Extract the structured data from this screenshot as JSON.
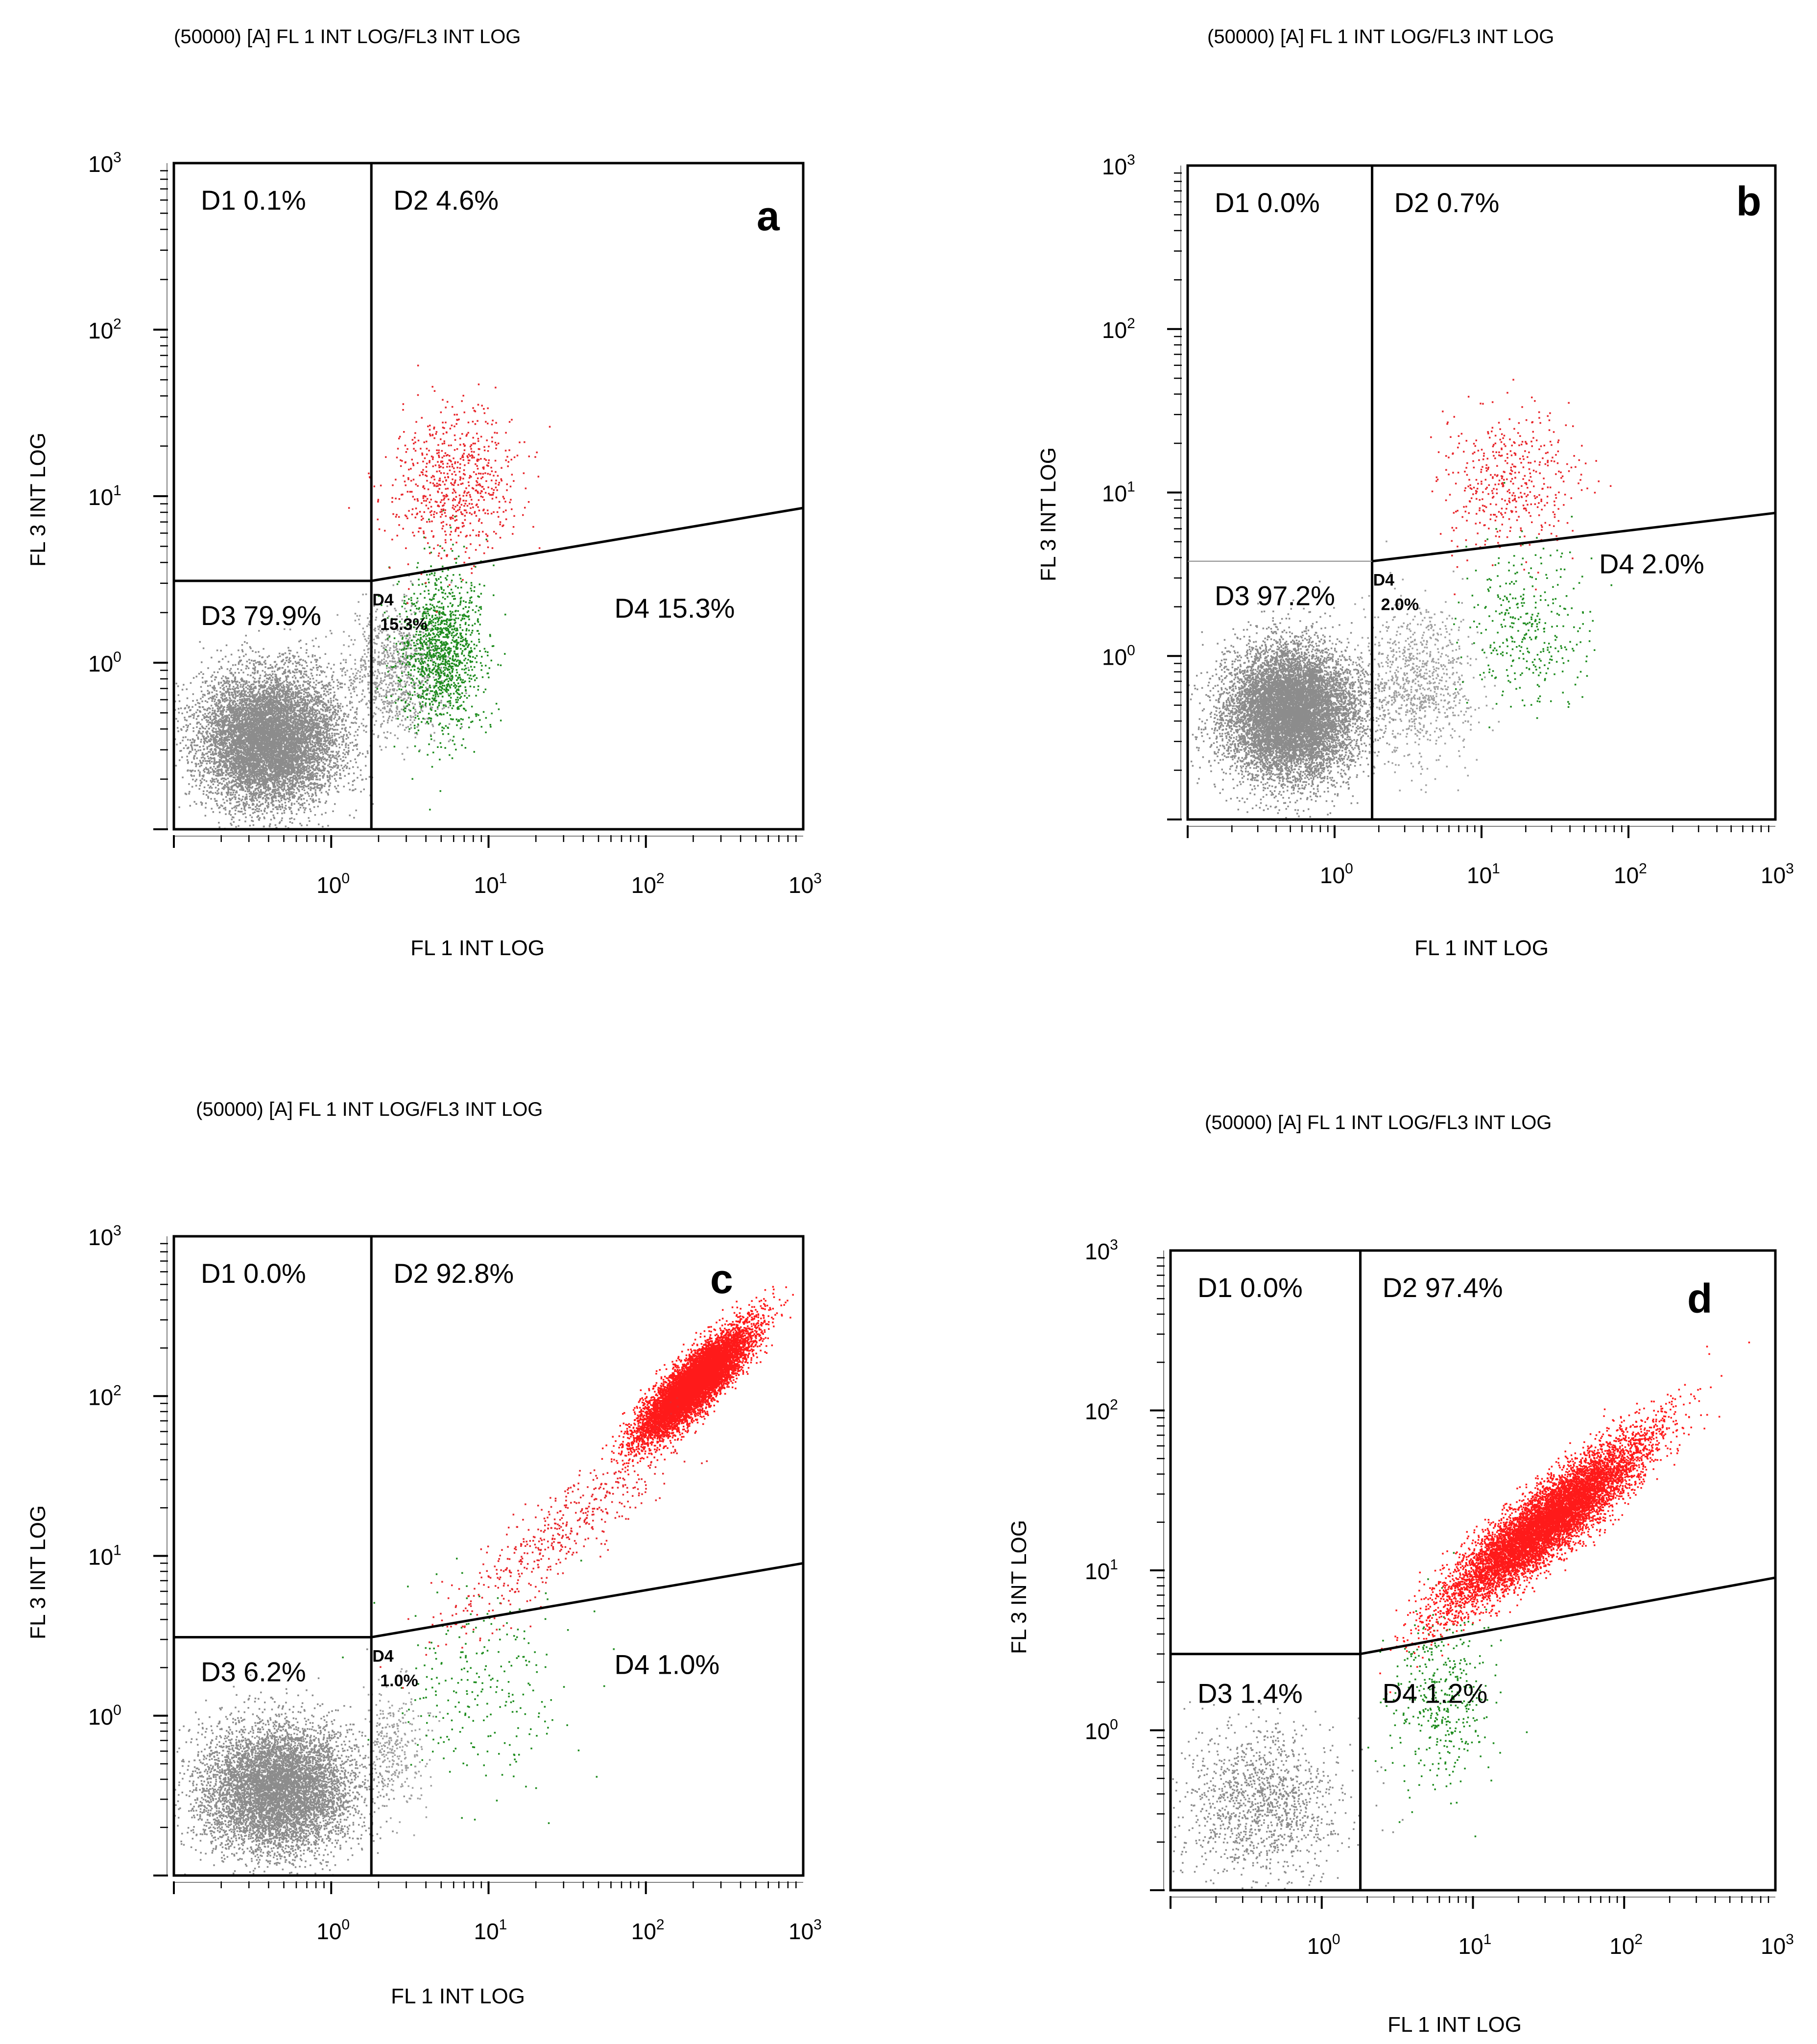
{
  "chart_data": [
    {
      "type": "scatter",
      "panel": "a",
      "title": "(50000) [A]  FL 1  INT LOG/FL3  INT LOG",
      "xlabel": "FL 1 INT LOG",
      "ylabel": "FL 3 INT LOG",
      "xscale": "log",
      "yscale": "log",
      "xlim": [
        0.1,
        1000
      ],
      "ylim": [
        0.1,
        1000
      ],
      "x_ticks": [
        {
          "base": "10",
          "exp": "0"
        },
        {
          "base": "10",
          "exp": "1"
        },
        {
          "base": "10",
          "exp": "2"
        },
        {
          "base": "10",
          "exp": "3"
        }
      ],
      "y_ticks": [
        {
          "base": "10",
          "exp": "0"
        },
        {
          "base": "10",
          "exp": "1"
        },
        {
          "base": "10",
          "exp": "2"
        },
        {
          "base": "10",
          "exp": "3"
        }
      ],
      "gates": {
        "x_vertical": 1.8,
        "y_horizontal": 3.1,
        "slope_end_y": 8.5
      },
      "quadrants": [
        {
          "label": "D1 0.1%",
          "region": "top-left",
          "percent": 0.1
        },
        {
          "label": "D2 4.6%",
          "region": "top-right",
          "percent": 4.6
        },
        {
          "label": "D3 79.9%",
          "region": "bottom-left",
          "percent": 79.9
        },
        {
          "label": "D4 15.3%",
          "region": "bottom-right",
          "percent": 15.3
        }
      ],
      "inner_label_top": "D4",
      "inner_label_bottom": "15.3%",
      "letter": "a",
      "populations": [
        {
          "name": "D3",
          "color": "#8c8c8c",
          "cx": 0.4,
          "cy": 0.35,
          "sx": 0.22,
          "sy": 0.2,
          "n": 9000
        },
        {
          "name": "D3-tail",
          "color": "#9a9a9a",
          "cx": 2.5,
          "cy": 0.9,
          "sx": 0.16,
          "sy": 0.2,
          "n": 900
        },
        {
          "name": "D4",
          "color": "#1e8c1e",
          "cx": 5.0,
          "cy": 1.2,
          "sx": 0.14,
          "sy": 0.24,
          "n": 1300
        },
        {
          "name": "D2",
          "color": "#e8262b",
          "cx": 6.0,
          "cy": 12.0,
          "sx": 0.2,
          "sy": 0.22,
          "n": 700
        }
      ]
    },
    {
      "type": "scatter",
      "panel": "b",
      "title": "(50000) [A]  FL 1  INT LOG/FL3  INT LOG",
      "xlabel": "FL 1 INT LOG",
      "ylabel": "FL 3 INT LOG",
      "xscale": "log",
      "yscale": "log",
      "xlim": [
        0.1,
        1000
      ],
      "ylim": [
        0.1,
        1000
      ],
      "x_ticks": [
        {
          "base": "10",
          "exp": "0"
        },
        {
          "base": "10",
          "exp": "1"
        },
        {
          "base": "10",
          "exp": "2"
        },
        {
          "base": "10",
          "exp": "3"
        }
      ],
      "y_ticks": [
        {
          "base": "10",
          "exp": "0"
        },
        {
          "base": "10",
          "exp": "1"
        },
        {
          "base": "10",
          "exp": "2"
        },
        {
          "base": "10",
          "exp": "3"
        }
      ],
      "gates": {
        "x_vertical": 1.8,
        "y_horizontal": 3.8,
        "slope_end_y": 7.5
      },
      "quadrants": [
        {
          "label": "D1 0.0%",
          "region": "top-left",
          "percent": 0.0
        },
        {
          "label": "D2 0.7%",
          "region": "top-right",
          "percent": 0.7
        },
        {
          "label": "D3 97.2%",
          "region": "bottom-left",
          "percent": 97.2
        },
        {
          "label": "D4 2.0%",
          "region": "bottom-right",
          "percent": 2.0
        }
      ],
      "inner_label_top": "D4",
      "inner_label_bottom": "2.0%",
      "letter": "b",
      "populations": [
        {
          "name": "D3",
          "color": "#8c8c8c",
          "cx": 0.5,
          "cy": 0.45,
          "sx": 0.22,
          "sy": 0.2,
          "n": 10000
        },
        {
          "name": "D3-tail",
          "color": "#a0a0a0",
          "cx": 3.5,
          "cy": 0.7,
          "sx": 0.2,
          "sy": 0.24,
          "n": 900
        },
        {
          "name": "D4",
          "color": "#1e8c1e",
          "cx": 20.0,
          "cy": 1.5,
          "sx": 0.2,
          "sy": 0.25,
          "n": 350
        },
        {
          "name": "D2",
          "color": "#e8262b",
          "cx": 15.0,
          "cy": 12.0,
          "sx": 0.24,
          "sy": 0.22,
          "n": 450
        }
      ]
    },
    {
      "type": "scatter",
      "panel": "c",
      "title": "(50000) [A]  FL 1  INT LOG/FL3  INT LOG",
      "xlabel": "FL 1 INT LOG",
      "ylabel": "FL 3 INT LOG",
      "xscale": "log",
      "yscale": "log",
      "xlim": [
        0.1,
        1000
      ],
      "ylim": [
        0.1,
        1000
      ],
      "x_ticks": [
        {
          "base": "10",
          "exp": "0"
        },
        {
          "base": "10",
          "exp": "1"
        },
        {
          "base": "10",
          "exp": "2"
        },
        {
          "base": "10",
          "exp": "3"
        }
      ],
      "y_ticks": [
        {
          "base": "10",
          "exp": "0"
        },
        {
          "base": "10",
          "exp": "1"
        },
        {
          "base": "10",
          "exp": "2"
        },
        {
          "base": "10",
          "exp": "3"
        }
      ],
      "gates": {
        "x_vertical": 1.8,
        "y_horizontal": 3.1,
        "slope_end_y": 9.0
      },
      "quadrants": [
        {
          "label": "D1 0.0%",
          "region": "top-left",
          "percent": 0.0
        },
        {
          "label": "D2 92.8%",
          "region": "top-right",
          "percent": 92.8
        },
        {
          "label": "D3 6.2%",
          "region": "bottom-left",
          "percent": 6.2
        },
        {
          "label": "D4 1.0%",
          "region": "bottom-right",
          "percent": 1.0
        }
      ],
      "inner_label_top": "D4",
      "inner_label_bottom": "1.0%",
      "letter": "c",
      "populations": [
        {
          "name": "D3",
          "color": "#8c8c8c",
          "cx": 0.45,
          "cy": 0.35,
          "sx": 0.24,
          "sy": 0.2,
          "n": 7000
        },
        {
          "name": "D3-tail",
          "color": "#a0a0a0",
          "cx": 2.5,
          "cy": 0.6,
          "sx": 0.1,
          "sy": 0.2,
          "n": 300
        },
        {
          "name": "D4",
          "color": "#1e8c1e",
          "cx": 10.0,
          "cy": 1.5,
          "sx": 0.28,
          "sy": 0.3,
          "n": 250
        },
        {
          "name": "D2",
          "color": "#ff1a1a",
          "cx": 200.0,
          "cy": 120.0,
          "sx": 0.17,
          "sy": 0.17,
          "n": 9000,
          "corr": 0.85
        },
        {
          "name": "D2-trail",
          "color": "#e8262b",
          "cx": 30.0,
          "cy": 15.0,
          "sx": 0.38,
          "sy": 0.32,
          "n": 500,
          "corr": 0.9
        }
      ]
    },
    {
      "type": "scatter",
      "panel": "d",
      "title": "(50000) [A]  FL 1  INT LOG/FL3  INT LOG",
      "xlabel": "FL 1 INT LOG",
      "ylabel": "FL 3 INT LOG",
      "xscale": "log",
      "yscale": "log",
      "xlim": [
        0.1,
        1000
      ],
      "ylim": [
        0.1,
        1000
      ],
      "x_ticks": [
        {
          "base": "10",
          "exp": "0"
        },
        {
          "base": "10",
          "exp": "1"
        },
        {
          "base": "10",
          "exp": "2"
        },
        {
          "base": "10",
          "exp": "3"
        }
      ],
      "y_ticks": [
        {
          "base": "10",
          "exp": "0"
        },
        {
          "base": "10",
          "exp": "1"
        },
        {
          "base": "10",
          "exp": "2"
        },
        {
          "base": "10",
          "exp": "3"
        }
      ],
      "gates": {
        "x_vertical": 1.8,
        "y_horizontal": 3.0,
        "slope_end_y": 9.0
      },
      "quadrants": [
        {
          "label": "D1 0.0%",
          "region": "top-left",
          "percent": 0.0
        },
        {
          "label": "D2 97.4%",
          "region": "top-right",
          "percent": 97.4
        },
        {
          "label": "D3 1.4%",
          "region": "bottom-left",
          "percent": 1.4
        },
        {
          "label": "D4 1.2%",
          "region": "bottom-right",
          "percent": 1.2
        }
      ],
      "inner_label_top": "",
      "inner_label_bottom": "",
      "letter": "d",
      "populations": [
        {
          "name": "D3",
          "color": "#8c8c8c",
          "cx": 0.4,
          "cy": 0.35,
          "sx": 0.26,
          "sy": 0.24,
          "n": 1300
        },
        {
          "name": "D4",
          "color": "#1e8c1e",
          "cx": 6.0,
          "cy": 1.5,
          "sx": 0.18,
          "sy": 0.28,
          "n": 400
        },
        {
          "name": "D2",
          "color": "#ff1a1a",
          "cx": 30.0,
          "cy": 20.0,
          "sx": 0.32,
          "sy": 0.26,
          "n": 9000,
          "corr": 0.9
        }
      ]
    }
  ]
}
